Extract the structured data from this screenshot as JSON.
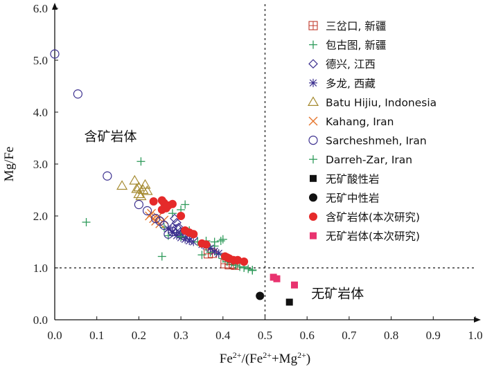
{
  "chart_data": {
    "type": "scatter",
    "title": "",
    "xlabel": "Fe2+/(Fe2++Mg2+)",
    "ylabel": "Mg/Fe",
    "xlim": [
      0.0,
      1.0
    ],
    "ylim": [
      0.0,
      6.0
    ],
    "xticks": [
      "0.0",
      "0.1",
      "0.2",
      "0.3",
      "0.4",
      "0.5",
      "0.6",
      "0.7",
      "0.8",
      "0.9",
      "1.0"
    ],
    "yticks": [
      "0.0",
      "1.0",
      "2.0",
      "3.0",
      "4.0",
      "5.0",
      "6.0"
    ],
    "grid": false,
    "legend_position": "top-right",
    "reference_lines": {
      "x": 0.5,
      "y": 1.0
    },
    "annotations": [
      {
        "text": "含矿岩体",
        "x": 0.07,
        "y": 3.45
      },
      {
        "text": "无矿岩体",
        "x": 0.61,
        "y": 0.42
      }
    ],
    "series": [
      {
        "name": "三岔口, 新疆",
        "marker": "boxplus",
        "color": "#c0392b",
        "points": [
          [
            0.365,
            1.27
          ],
          [
            0.375,
            1.28
          ],
          [
            0.405,
            1.08
          ],
          [
            0.415,
            1.06
          ],
          [
            0.425,
            1.07
          ],
          [
            0.43,
            1.05
          ]
        ]
      },
      {
        "name": "包古图, 新疆",
        "marker": "plus",
        "color": "#2e9a5a",
        "points": [
          [
            0.205,
            3.05
          ],
          [
            0.075,
            1.88
          ],
          [
            0.255,
            1.22
          ],
          [
            0.31,
            2.22
          ],
          [
            0.28,
            2.05
          ],
          [
            0.3,
            2.12
          ],
          [
            0.26,
            1.78
          ],
          [
            0.32,
            1.72
          ],
          [
            0.35,
            1.45
          ],
          [
            0.36,
            1.52
          ],
          [
            0.38,
            1.5
          ],
          [
            0.395,
            1.52
          ],
          [
            0.4,
            1.55
          ],
          [
            0.37,
            1.3
          ],
          [
            0.35,
            1.25
          ],
          [
            0.38,
            1.42
          ],
          [
            0.39,
            1.26
          ],
          [
            0.4,
            1.18
          ],
          [
            0.41,
            1.12
          ],
          [
            0.42,
            1.1
          ],
          [
            0.43,
            1.05
          ],
          [
            0.44,
            1.02
          ],
          [
            0.45,
            1.0
          ],
          [
            0.46,
            0.98
          ],
          [
            0.47,
            0.96
          ],
          [
            0.27,
            1.62
          ],
          [
            0.29,
            1.68
          ]
        ]
      },
      {
        "name": "德兴, 江西",
        "marker": "diamond",
        "color": "#3b2f8f",
        "points": [
          [
            0.285,
            1.95
          ],
          [
            0.29,
            1.87
          ],
          [
            0.295,
            1.78
          ],
          [
            0.3,
            1.7
          ],
          [
            0.31,
            1.66
          ],
          [
            0.32,
            1.62
          ],
          [
            0.33,
            1.58
          ],
          [
            0.28,
            1.78
          ]
        ]
      },
      {
        "name": "多龙, 西藏",
        "marker": "asterisk",
        "color": "#3b2f8f",
        "points": [
          [
            0.27,
            1.75
          ],
          [
            0.28,
            1.68
          ],
          [
            0.29,
            1.62
          ],
          [
            0.3,
            1.58
          ],
          [
            0.31,
            1.55
          ],
          [
            0.32,
            1.52
          ],
          [
            0.33,
            1.5
          ],
          [
            0.35,
            1.45
          ],
          [
            0.36,
            1.42
          ],
          [
            0.37,
            1.38
          ],
          [
            0.38,
            1.32
          ],
          [
            0.39,
            1.28
          ],
          [
            0.3,
            1.65
          ]
        ]
      },
      {
        "name": "Batu Hijiu, Indonesia",
        "marker": "triangle",
        "color": "#a58a30",
        "points": [
          [
            0.16,
            2.58
          ],
          [
            0.19,
            2.68
          ],
          [
            0.195,
            2.52
          ],
          [
            0.2,
            2.42
          ],
          [
            0.21,
            2.5
          ],
          [
            0.215,
            2.6
          ],
          [
            0.22,
            2.48
          ],
          [
            0.205,
            2.38
          ],
          [
            0.2,
            2.55
          ]
        ]
      },
      {
        "name": "Kahang, Iran",
        "marker": "x",
        "color": "#e6772e",
        "points": [
          [
            0.225,
            2.0
          ],
          [
            0.23,
            2.05
          ],
          [
            0.235,
            1.95
          ],
          [
            0.24,
            1.9
          ],
          [
            0.245,
            1.98
          ],
          [
            0.25,
            1.85
          ],
          [
            0.26,
            1.92
          ]
        ]
      },
      {
        "name": "Sarcheshmeh, Iran",
        "marker": "circle-open",
        "color": "#3b2f8f",
        "points": [
          [
            0.0,
            5.12
          ],
          [
            0.055,
            4.35
          ],
          [
            0.125,
            2.77
          ],
          [
            0.2,
            2.22
          ],
          [
            0.22,
            2.1
          ],
          [
            0.24,
            1.95
          ],
          [
            0.25,
            1.9
          ],
          [
            0.26,
            1.82
          ],
          [
            0.27,
            1.65
          ],
          [
            0.28,
            1.7
          ],
          [
            0.29,
            1.75
          ]
        ]
      },
      {
        "name": "Darreh-Zar, Iran",
        "marker": "plus",
        "color": "#2e9a5a",
        "points": [
          [
            0.3,
            1.6
          ],
          [
            0.34,
            1.5
          ],
          [
            0.36,
            1.4
          ],
          [
            0.42,
            1.15
          ],
          [
            0.45,
            1.02
          ],
          [
            0.47,
            0.95
          ]
        ]
      },
      {
        "name": "无矿酸性岩",
        "marker": "square-filled",
        "color": "#111111",
        "points": [
          [
            0.558,
            0.34
          ]
        ]
      },
      {
        "name": "无矿中性岩",
        "marker": "circle-filled",
        "color": "#111111",
        "points": [
          [
            0.488,
            0.46
          ]
        ]
      },
      {
        "name": "含矿岩体(本次研究)",
        "marker": "circle-filled",
        "color": "#e52a2a",
        "points": [
          [
            0.235,
            2.28
          ],
          [
            0.255,
            2.3
          ],
          [
            0.26,
            2.25
          ],
          [
            0.27,
            2.2
          ],
          [
            0.255,
            2.12
          ],
          [
            0.265,
            2.15
          ],
          [
            0.28,
            2.23
          ],
          [
            0.3,
            2.0
          ],
          [
            0.31,
            1.72
          ],
          [
            0.32,
            1.68
          ],
          [
            0.33,
            1.65
          ],
          [
            0.35,
            1.47
          ],
          [
            0.36,
            1.45
          ],
          [
            0.41,
            1.2
          ],
          [
            0.415,
            1.18
          ],
          [
            0.425,
            1.15
          ],
          [
            0.435,
            1.15
          ],
          [
            0.45,
            1.12
          ],
          [
            0.405,
            1.22
          ]
        ]
      },
      {
        "name": "无矿岩体(本次研究)",
        "marker": "square-filled",
        "color": "#e8336f",
        "points": [
          [
            0.52,
            0.82
          ],
          [
            0.528,
            0.79
          ],
          [
            0.57,
            0.67
          ]
        ]
      }
    ]
  }
}
